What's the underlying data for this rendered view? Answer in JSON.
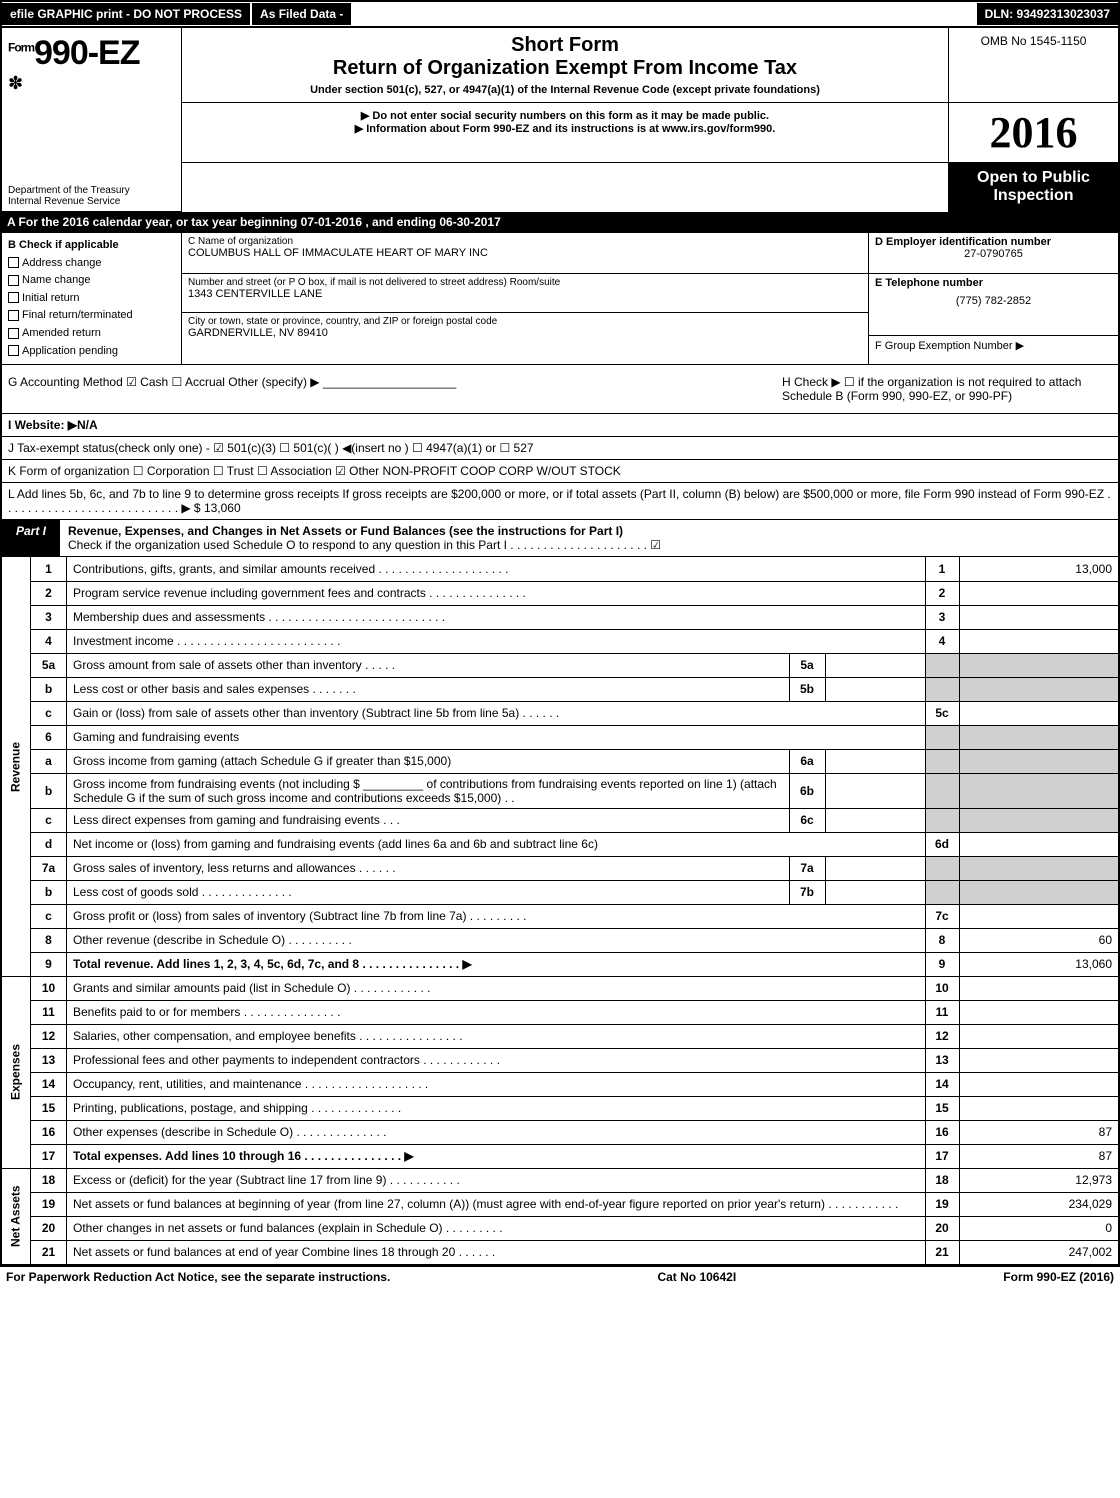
{
  "topbar": {
    "efile": "efile GRAPHIC print - DO NOT PROCESS",
    "asfiled": "As Filed Data -",
    "dln": "DLN: 93492313023037"
  },
  "header": {
    "form_prefix": "Form",
    "form_number": "990-EZ",
    "short_form": "Short Form",
    "return_title": "Return of Organization Exempt From Income Tax",
    "under_section": "Under section 501(c), 527, or 4947(a)(1) of the Internal Revenue Code (except private foundations)",
    "notice1": "▶ Do not enter social security numbers on this form as it may be made public.",
    "notice2": "▶ Information about Form 990-EZ and its instructions is at www.irs.gov/form990.",
    "dept": "Department of the Treasury",
    "irs": "Internal Revenue Service",
    "omb": "OMB No 1545-1150",
    "year": "2016",
    "open1": "Open to Public",
    "open2": "Inspection"
  },
  "rowA": "A  For the 2016 calendar year, or tax year beginning 07-01-2016           , and ending 06-30-2017",
  "sectionB": {
    "b_label": "B  Check if applicable",
    "checks": [
      "Address change",
      "Name change",
      "Initial return",
      "Final return/terminated",
      "Amended return",
      "Application pending"
    ],
    "c_label": "C Name of organization",
    "org_name": "COLUMBUS HALL OF IMMACULATE HEART OF MARY INC",
    "addr_label": "Number and street (or P  O  box, if mail is not delivered to street address)  Room/suite",
    "addr": "1343 CENTERVILLE LANE",
    "city_label": "City or town, state or province, country, and ZIP or foreign postal code",
    "city": "GARDNERVILLE, NV  89410",
    "d_label": "D Employer identification number",
    "ein": "27-0790765",
    "e_label": "E Telephone number",
    "phone": "(775) 782-2852",
    "f_label": "F Group Exemption Number   ▶"
  },
  "rowG": {
    "left": "G Accounting Method    ☑ Cash   ☐ Accrual   Other (specify) ▶ ____________________",
    "right": "H   Check ▶  ☐  if the organization is not required to attach Schedule B (Form 990, 990-EZ, or 990-PF)"
  },
  "rowI": "I Website: ▶N/A",
  "rowJ": "J Tax-exempt status(check only one) - ☑ 501(c)(3)  ☐ 501(c)( ) ◀(insert no ) ☐ 4947(a)(1) or ☐ 527",
  "rowK": "K Form of organization    ☐ Corporation  ☐ Trust  ☐ Association  ☑ Other NON-PROFIT COOP CORP W/OUT STOCK",
  "rowL": "L Add lines 5b, 6c, and 7b to line 9 to determine gross receipts  If gross receipts are $200,000 or more, or if total assets (Part II, column (B) below) are $500,000 or more, file Form 990 instead of Form 990-EZ  .  .  .  .  .  .  .  .  .  .  .  .  .  .  .  .  .  .  .  .  .  .  .  .  .  .  .  ▶ $ 13,060",
  "part1": {
    "tag": "Part I",
    "title": "Revenue, Expenses, and Changes in Net Assets or Fund Balances (see the instructions for Part I)",
    "sub": "Check if the organization used Schedule O to respond to any question in this Part I .  .  .  .  .  .  .  .  .  .  .  .  .  .  .  .  .  .  .  .  .  ☑"
  },
  "side_labels": {
    "revenue": "Revenue",
    "expenses": "Expenses",
    "netassets": "Net Assets"
  },
  "lines": [
    {
      "n": "1",
      "text": "Contributions, gifts, grants, and similar amounts received .  .  .  .  .  .  .  .  .  .  .  .  .  .  .  .  .  .  .  .",
      "col": "1",
      "amt": "13,000"
    },
    {
      "n": "2",
      "text": "Program service revenue including government fees and contracts .  .  .  .  .  .  .  .  .  .  .  .  .  .  .",
      "col": "2",
      "amt": ""
    },
    {
      "n": "3",
      "text": "Membership dues and assessments .  .  .  .  .  .  .  .  .  .  .  .  .  .  .  .  .  .  .  .  .  .  .  .  .  .  .",
      "col": "3",
      "amt": ""
    },
    {
      "n": "4",
      "text": "Investment income .  .  .  .  .  .  .  .  .  .  .  .  .  .  .  .  .  .  .  .  .  .  .  .  .",
      "col": "4",
      "amt": ""
    },
    {
      "n": "5a",
      "text": "Gross amount from sale of assets other than inventory .  .  .  .  .",
      "inner": "5a",
      "shade": true
    },
    {
      "n": "b",
      "text": "Less  cost or other basis and sales expenses .  .  .  .  .  .  .",
      "inner": "5b",
      "shade": true
    },
    {
      "n": "c",
      "text": "Gain or (loss) from sale of assets other than inventory (Subtract line 5b from line 5a) .  .  .  .  .  .",
      "col": "5c",
      "amt": ""
    },
    {
      "n": "6",
      "text": "Gaming and fundraising events",
      "shade": true
    },
    {
      "n": "a",
      "text": "Gross income from gaming (attach Schedule G if greater than $15,000)",
      "inner": "6a",
      "shade": true
    },
    {
      "n": "b",
      "text": "Gross income from fundraising events (not including $ _________ of contributions from fundraising events reported on line 1) (attach Schedule G if the sum of such gross income and contributions exceeds $15,000)    .  .",
      "inner": "6b",
      "shade": true
    },
    {
      "n": "c",
      "text": "Less  direct expenses from gaming and fundraising events     .  .  .",
      "inner": "6c",
      "shade": true
    },
    {
      "n": "d",
      "text": "Net income or (loss) from gaming and fundraising events (add lines 6a and 6b and subtract line 6c)",
      "col": "6d",
      "amt": ""
    },
    {
      "n": "7a",
      "text": "Gross sales of inventory, less returns and allowances .  .  .  .  .  .",
      "inner": "7a",
      "shade": true
    },
    {
      "n": "b",
      "text": "Less  cost of goods sold         .  .  .  .  .  .  .  .  .  .  .  .  .  .",
      "inner": "7b",
      "shade": true
    },
    {
      "n": "c",
      "text": "Gross profit or (loss) from sales of inventory (Subtract line 7b from line 7a) .  .  .  .  .  .  .  .  .",
      "col": "7c",
      "amt": ""
    },
    {
      "n": "8",
      "text": "Other revenue (describe in Schedule O)                    .  .  .  .  .  .  .  .  .  .",
      "col": "8",
      "amt": "60"
    },
    {
      "n": "9",
      "text": "Total revenue. Add lines 1, 2, 3, 4, 5c, 6d, 7c, and 8 .  .  .  .  .  .  .  .  .  .  .  .  .  .  .  ▶",
      "col": "9",
      "amt": "13,060",
      "bold": true
    }
  ],
  "exp_lines": [
    {
      "n": "10",
      "text": "Grants and similar amounts paid (list in Schedule O)         .  .  .  .  .  .  .  .  .  .  .  .",
      "col": "10",
      "amt": ""
    },
    {
      "n": "11",
      "text": "Benefits paid to or for members              .  .  .  .  .  .  .  .  .  .  .  .  .  .  .",
      "col": "11",
      "amt": ""
    },
    {
      "n": "12",
      "text": "Salaries, other compensation, and employee benefits .  .  .  .  .  .  .  .  .  .  .  .  .  .  .  .",
      "col": "12",
      "amt": ""
    },
    {
      "n": "13",
      "text": "Professional fees and other payments to independent contractors  .  .  .  .  .  .  .  .  .  .  .  .",
      "col": "13",
      "amt": ""
    },
    {
      "n": "14",
      "text": "Occupancy, rent, utilities, and maintenance .  .  .  .  .  .  .  .  .  .  .  .  .  .  .  .  .  .  .",
      "col": "14",
      "amt": ""
    },
    {
      "n": "15",
      "text": "Printing, publications, postage, and shipping         .  .  .  .  .  .  .  .  .  .  .  .  .  .",
      "col": "15",
      "amt": ""
    },
    {
      "n": "16",
      "text": "Other expenses (describe in Schedule O)           .  .  .  .  .  .  .  .  .  .  .  .  .  .",
      "col": "16",
      "amt": "87"
    },
    {
      "n": "17",
      "text": "Total expenses. Add lines 10 through 16      .  .  .  .  .  .  .  .  .  .  .  .  .  .  .  ▶",
      "col": "17",
      "amt": "87",
      "bold": true
    }
  ],
  "net_lines": [
    {
      "n": "18",
      "text": "Excess or (deficit) for the year (Subtract line 17 from line 9)      .  .  .  .  .  .  .  .  .  .  .",
      "col": "18",
      "amt": "12,973"
    },
    {
      "n": "19",
      "text": "Net assets or fund balances at beginning of year (from line 27, column (A)) (must agree with end-of-year figure reported on prior year's return)         .  .  .  .  .  .  .  .  .  .  .",
      "col": "19",
      "amt": "234,029"
    },
    {
      "n": "20",
      "text": "Other changes in net assets or fund balances (explain in Schedule O)    .  .  .  .  .  .  .  .  .",
      "col": "20",
      "amt": "0"
    },
    {
      "n": "21",
      "text": "Net assets or fund balances at end of year  Combine lines 18 through 20      .  .  .  .  .  .",
      "col": "21",
      "amt": "247,002"
    }
  ],
  "footer": {
    "left": "For Paperwork Reduction Act Notice, see the separate instructions.",
    "mid": "Cat  No  10642I",
    "right": "Form 990-EZ (2016)"
  }
}
